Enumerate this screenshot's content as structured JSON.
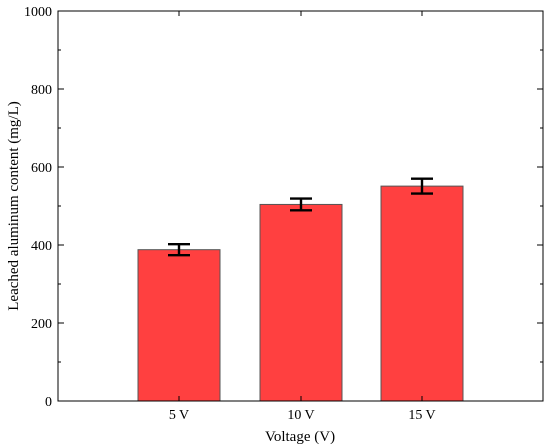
{
  "chart_data": {
    "type": "bar",
    "categories": [
      "5 V",
      "10 V",
      "15 V"
    ],
    "values": [
      388,
      504,
      551
    ],
    "errors": [
      14,
      15,
      19
    ],
    "xlabel": "Voltage (V)",
    "ylabel": "Leached aluminum content (mg/L)",
    "ylim": [
      0,
      1000
    ],
    "yticks": [
      0,
      200,
      400,
      600,
      800,
      1000
    ],
    "bar_color": "#ff4040",
    "grid": false,
    "legend": "none"
  }
}
